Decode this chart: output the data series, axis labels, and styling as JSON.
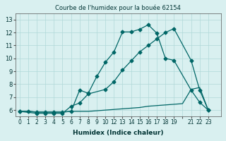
{
  "title": "Courbe de l'humidex pour la bouée 62154",
  "xlabel": "Humidex (Indice chaleur)",
  "ylabel": "",
  "bg_color": "#d9f0f0",
  "grid_color": "#b0d8d8",
  "line_color": "#006666",
  "xlim": [
    -0.5,
    23.5
  ],
  "ylim": [
    5.5,
    13.5
  ],
  "yticks": [
    6,
    7,
    8,
    9,
    10,
    11,
    12,
    13
  ],
  "xtick_labels": [
    "0",
    "1",
    "2",
    "3",
    "4",
    "5",
    "6",
    "7",
    "8",
    "9",
    "10",
    "12",
    "13",
    "14",
    "15",
    "16",
    "17",
    "18",
    "19",
    "",
    "21",
    "22",
    "23"
  ],
  "xtick_positions": [
    0,
    1,
    2,
    3,
    4,
    5,
    6,
    7,
    8,
    9,
    10,
    11,
    12,
    13,
    14,
    15,
    16,
    17,
    18,
    19,
    20,
    21,
    22
  ],
  "line1_x": [
    0,
    1,
    2,
    3,
    4,
    5,
    6,
    7,
    8,
    9,
    10,
    11,
    12,
    13,
    14,
    15,
    16,
    17,
    18,
    20,
    21,
    22
  ],
  "line1_y": [
    5.9,
    5.9,
    5.85,
    5.85,
    5.85,
    5.85,
    5.9,
    7.55,
    7.3,
    8.6,
    9.7,
    10.5,
    12.05,
    12.05,
    12.25,
    12.6,
    11.95,
    10.0,
    9.85,
    7.55,
    6.6,
    6.0
  ],
  "line2_x": [
    0,
    2,
    3,
    4,
    5,
    6,
    7,
    8,
    10,
    11,
    12,
    13,
    14,
    15,
    16,
    17,
    18,
    20,
    21,
    22
  ],
  "line2_y": [
    5.9,
    5.75,
    5.75,
    5.75,
    5.75,
    6.3,
    6.55,
    7.25,
    7.6,
    8.2,
    9.1,
    9.8,
    10.5,
    11.0,
    11.5,
    12.0,
    12.3,
    9.85,
    7.55,
    6.0
  ],
  "line3_x": [
    0,
    1,
    2,
    3,
    4,
    5,
    6,
    7,
    8,
    9,
    10,
    11,
    12,
    13,
    14,
    15,
    16,
    17,
    18,
    19,
    20,
    21,
    22
  ],
  "line3_y": [
    5.9,
    5.9,
    5.85,
    5.85,
    5.85,
    5.85,
    5.9,
    5.9,
    5.9,
    5.95,
    6.0,
    6.05,
    6.1,
    6.15,
    6.2,
    6.3,
    6.35,
    6.4,
    6.45,
    6.5,
    7.6,
    7.75,
    6.0
  ]
}
